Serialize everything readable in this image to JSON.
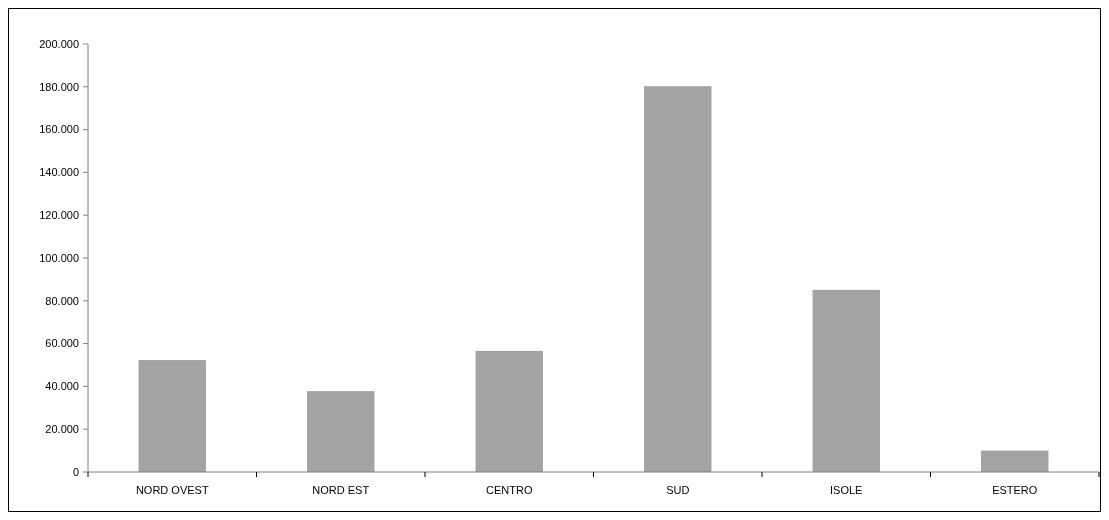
{
  "chart_data": {
    "type": "bar",
    "categories": [
      "NORD OVEST",
      "NORD EST",
      "CENTRO",
      "SUD",
      "ISOLE",
      "ESTERO"
    ],
    "values": [
      52300,
      37800,
      56600,
      180300,
      85100,
      10000
    ],
    "color": "#a3a3a3",
    "ylim": [
      0,
      200000
    ],
    "yticks": [
      0,
      {
        "value": 20000,
        "label": "20.000"
      },
      {
        "value": 40000,
        "label": "40.000"
      },
      {
        "value": 60000,
        "label": "60.000"
      },
      {
        "value": 80000,
        "label": "80.000"
      },
      {
        "value": 100000,
        "label": "100.000"
      },
      {
        "value": 120000,
        "label": "120.000"
      },
      {
        "value": 140000,
        "label": "140.000"
      },
      {
        "value": 160000,
        "label": "160.000"
      },
      {
        "value": 180000,
        "label": "180.000"
      },
      {
        "value": 200000,
        "label": "200.000"
      }
    ],
    "grid": false
  }
}
